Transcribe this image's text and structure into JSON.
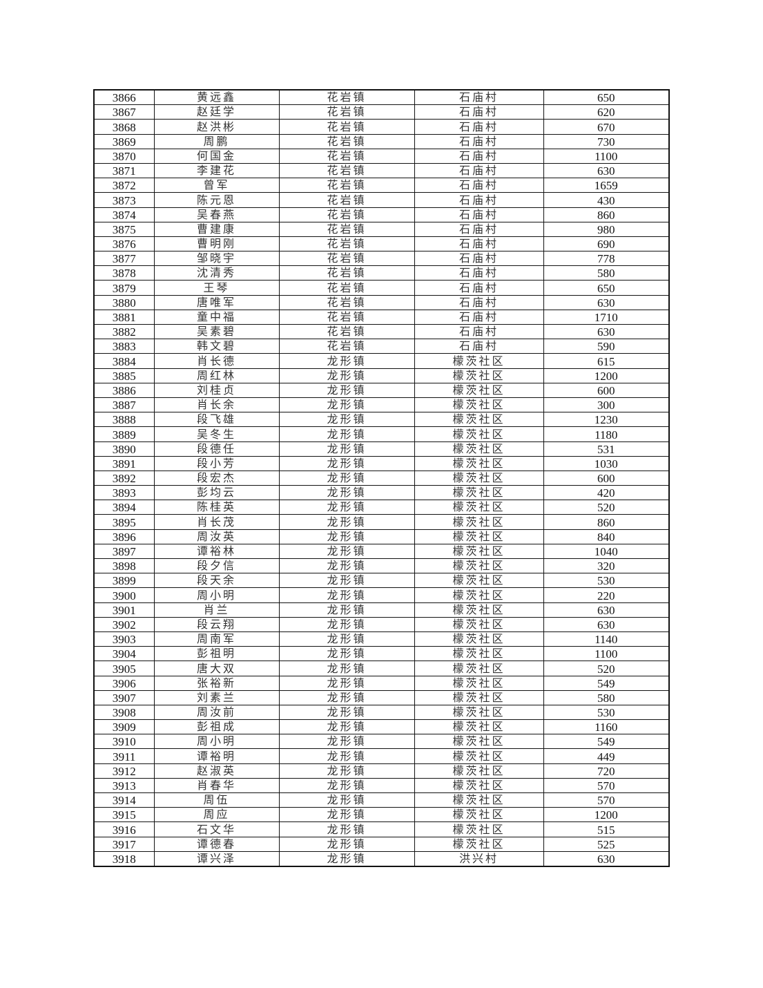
{
  "table": {
    "rows": [
      [
        "3866",
        "黄远鑫",
        "花岩镇",
        "石庙村",
        "650"
      ],
      [
        "3867",
        "赵廷学",
        "花岩镇",
        "石庙村",
        "620"
      ],
      [
        "3868",
        "赵洪彬",
        "花岩镇",
        "石庙村",
        "670"
      ],
      [
        "3869",
        "周鹏",
        "花岩镇",
        "石庙村",
        "730"
      ],
      [
        "3870",
        "何国金",
        "花岩镇",
        "石庙村",
        "1100"
      ],
      [
        "3871",
        "李建花",
        "花岩镇",
        "石庙村",
        "630"
      ],
      [
        "3872",
        "曾军",
        "花岩镇",
        "石庙村",
        "1659"
      ],
      [
        "3873",
        "陈元恩",
        "花岩镇",
        "石庙村",
        "430"
      ],
      [
        "3874",
        "吴春燕",
        "花岩镇",
        "石庙村",
        "860"
      ],
      [
        "3875",
        "曹建康",
        "花岩镇",
        "石庙村",
        "980"
      ],
      [
        "3876",
        "曹明刚",
        "花岩镇",
        "石庙村",
        "690"
      ],
      [
        "3877",
        "邹晓宇",
        "花岩镇",
        "石庙村",
        "778"
      ],
      [
        "3878",
        "沈清秀",
        "花岩镇",
        "石庙村",
        "580"
      ],
      [
        "3879",
        "王琴",
        "花岩镇",
        "石庙村",
        "650"
      ],
      [
        "3880",
        "唐唯军",
        "花岩镇",
        "石庙村",
        "630"
      ],
      [
        "3881",
        "童中福",
        "花岩镇",
        "石庙村",
        "1710"
      ],
      [
        "3882",
        "吴素碧",
        "花岩镇",
        "石庙村",
        "630"
      ],
      [
        "3883",
        "韩文碧",
        "花岩镇",
        "石庙村",
        "590"
      ],
      [
        "3884",
        "肖长德",
        "龙形镇",
        "檬茨社区",
        "615"
      ],
      [
        "3885",
        "周红林",
        "龙形镇",
        "檬茨社区",
        "1200"
      ],
      [
        "3886",
        "刘桂贞",
        "龙形镇",
        "檬茨社区",
        "600"
      ],
      [
        "3887",
        "肖长余",
        "龙形镇",
        "檬茨社区",
        "300"
      ],
      [
        "3888",
        "段飞雄",
        "龙形镇",
        "檬茨社区",
        "1230"
      ],
      [
        "3889",
        "吴冬生",
        "龙形镇",
        "檬茨社区",
        "1180"
      ],
      [
        "3890",
        "段德任",
        "龙形镇",
        "檬茨社区",
        "531"
      ],
      [
        "3891",
        "段小芳",
        "龙形镇",
        "檬茨社区",
        "1030"
      ],
      [
        "3892",
        "段宏杰",
        "龙形镇",
        "檬茨社区",
        "600"
      ],
      [
        "3893",
        "彭均云",
        "龙形镇",
        "檬茨社区",
        "420"
      ],
      [
        "3894",
        "陈桂英",
        "龙形镇",
        "檬茨社区",
        "520"
      ],
      [
        "3895",
        "肖长茂",
        "龙形镇",
        "檬茨社区",
        "860"
      ],
      [
        "3896",
        "周汝英",
        "龙形镇",
        "檬茨社区",
        "840"
      ],
      [
        "3897",
        "谭裕林",
        "龙形镇",
        "檬茨社区",
        "1040"
      ],
      [
        "3898",
        "段夕信",
        "龙形镇",
        "檬茨社区",
        "320"
      ],
      [
        "3899",
        "段天余",
        "龙形镇",
        "檬茨社区",
        "530"
      ],
      [
        "3900",
        "周小明",
        "龙形镇",
        "檬茨社区",
        "220"
      ],
      [
        "3901",
        "肖兰",
        "龙形镇",
        "檬茨社区",
        "630"
      ],
      [
        "3902",
        "段云翔",
        "龙形镇",
        "檬茨社区",
        "630"
      ],
      [
        "3903",
        "周南军",
        "龙形镇",
        "檬茨社区",
        "1140"
      ],
      [
        "3904",
        "彭祖明",
        "龙形镇",
        "檬茨社区",
        "1100"
      ],
      [
        "3905",
        "唐大双",
        "龙形镇",
        "檬茨社区",
        "520"
      ],
      [
        "3906",
        "张裕新",
        "龙形镇",
        "檬茨社区",
        "549"
      ],
      [
        "3907",
        "刘素兰",
        "龙形镇",
        "檬茨社区",
        "580"
      ],
      [
        "3908",
        "周汝前",
        "龙形镇",
        "檬茨社区",
        "530"
      ],
      [
        "3909",
        "彭祖成",
        "龙形镇",
        "檬茨社区",
        "1160"
      ],
      [
        "3910",
        "周小明",
        "龙形镇",
        "檬茨社区",
        "549"
      ],
      [
        "3911",
        "谭裕明",
        "龙形镇",
        "檬茨社区",
        "449"
      ],
      [
        "3912",
        "赵淑英",
        "龙形镇",
        "檬茨社区",
        "720"
      ],
      [
        "3913",
        "肖春华",
        "龙形镇",
        "檬茨社区",
        "570"
      ],
      [
        "3914",
        "周伍",
        "龙形镇",
        "檬茨社区",
        "570"
      ],
      [
        "3915",
        "周应",
        "龙形镇",
        "檬茨社区",
        "1200"
      ],
      [
        "3916",
        "石文华",
        "龙形镇",
        "檬茨社区",
        "515"
      ],
      [
        "3917",
        "谭德春",
        "龙形镇",
        "檬茨社区",
        "525"
      ],
      [
        "3918",
        "谭兴泽",
        "龙形镇",
        "洪兴村",
        "630"
      ]
    ]
  }
}
